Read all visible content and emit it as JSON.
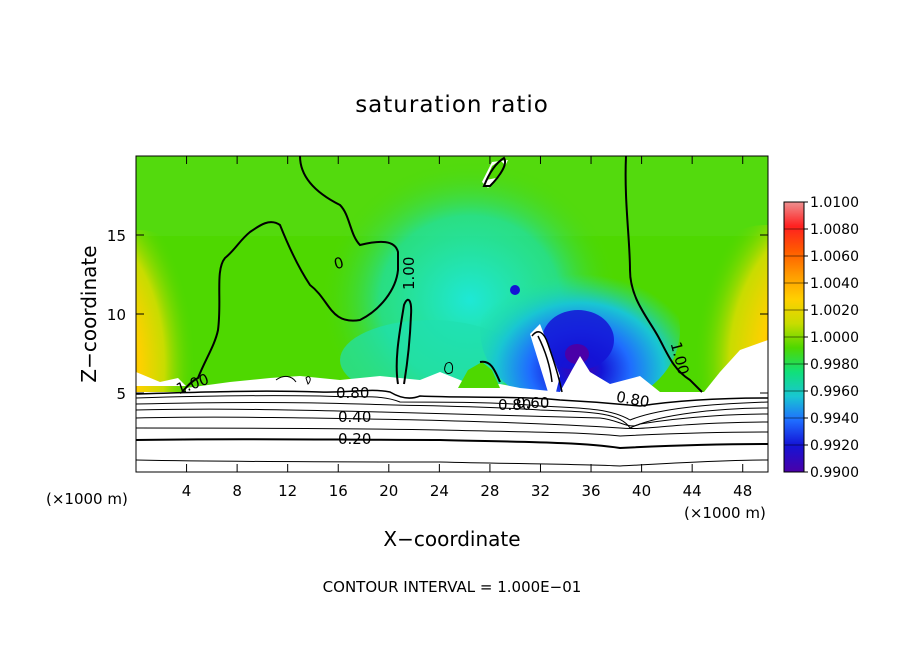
{
  "chart_data": {
    "type": "heatmap",
    "title": "saturation ratio",
    "xlabel": "X−coordinate",
    "ylabel": "Z−coordinate",
    "x_unit_label": "(×1000 m)",
    "footer": "CONTOUR INTERVAL = 1.000E−01",
    "xlim": [
      0,
      50
    ],
    "ylim": [
      0,
      20
    ],
    "x_ticks": [
      4,
      8,
      12,
      16,
      20,
      24,
      28,
      32,
      36,
      40,
      44,
      48
    ],
    "y_ticks": [
      5,
      10,
      15
    ],
    "colorbar": {
      "labels": [
        "1.0100",
        "1.0080",
        "1.0060",
        "1.0040",
        "1.0020",
        "1.0000",
        "0.9980",
        "0.9960",
        "0.9940",
        "0.9920",
        "0.9900"
      ],
      "colors": [
        "#ee9090",
        "#ff2020",
        "#ff5a00",
        "#ff9a00",
        "#ffd000",
        "#c8dc00",
        "#4ed800",
        "#10e07a",
        "#19c6d2",
        "#1f6cff",
        "#1414d6",
        "#4a00a8"
      ]
    },
    "contour_labels": [
      "1.00",
      "1.00",
      "1.00",
      "0",
      "0.80",
      "0.80",
      "0.80",
      "0.60",
      "0.40",
      "0.20"
    ],
    "colors": {
      "background": "#ffffff",
      "field_base": "#4ed800",
      "cyan_region": "#18e0c0",
      "blue_region": "#1f6cff",
      "deep_blue": "#1414d6",
      "purple": "#4a00a8",
      "red_region": "#ff2020"
    }
  }
}
